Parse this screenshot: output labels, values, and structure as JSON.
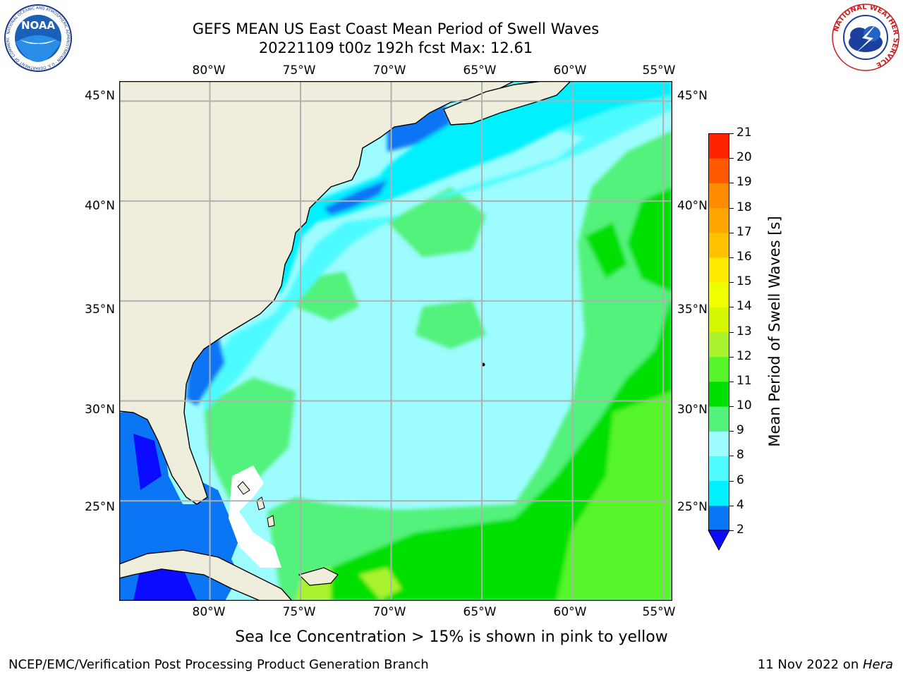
{
  "header": {
    "title_line1": "GEFS MEAN US East Coast Mean Period of Swell Waves",
    "title_line2": "20221109 t00z 192h fcst   Max: 12.61"
  },
  "logos": {
    "left": {
      "name": "noaa-logo",
      "text": "NOAA",
      "ring_text": "NATIONAL OCEANIC AND ATMOSPHERIC ADMINISTRATION · U.S. DEPARTMENT OF COMMERCE"
    },
    "right": {
      "name": "nws-logo",
      "ring_text": "NATIONAL WEATHER SERVICE"
    }
  },
  "map": {
    "lon_labels": [
      "80°W",
      "75°W",
      "70°W",
      "65°W",
      "60°W",
      "55°W"
    ],
    "lat_labels": [
      "45°N",
      "40°N",
      "35°N",
      "30°N",
      "25°N"
    ],
    "lon_range": [
      -85,
      -54.5
    ],
    "lat_range": [
      20,
      46
    ],
    "colors": {
      "land": "#efeddc",
      "no_data": "#ffffff",
      "grid": "#b0b0b0",
      "coast": "#000000"
    }
  },
  "colorbar": {
    "label": "Mean Period of Swell Waves [s]",
    "ticks": [
      "2",
      "4",
      "6",
      "8",
      "9",
      "10",
      "11",
      "12",
      "13",
      "14",
      "15",
      "16",
      "17",
      "18",
      "19",
      "20",
      "21"
    ],
    "colors": [
      "#0a75f5",
      "#00f0ff",
      "#4efbff",
      "#9cfcff",
      "#52f27b",
      "#00e000",
      "#55f52a",
      "#a8f32e",
      "#d4f700",
      "#f0ff00",
      "#ffea00",
      "#ffc000",
      "#ffa500",
      "#ff8c00",
      "#ff5a00",
      "#ff2400"
    ],
    "extend_color": "#0b0bff"
  },
  "footer": {
    "note": "Sea Ice Concentration > 15% is shown in pink to yellow",
    "left": "NCEP/EMC/Verification Post Processing Product Generation Branch",
    "right_date": "11 Nov 2022 on ",
    "right_host": "Hera"
  }
}
